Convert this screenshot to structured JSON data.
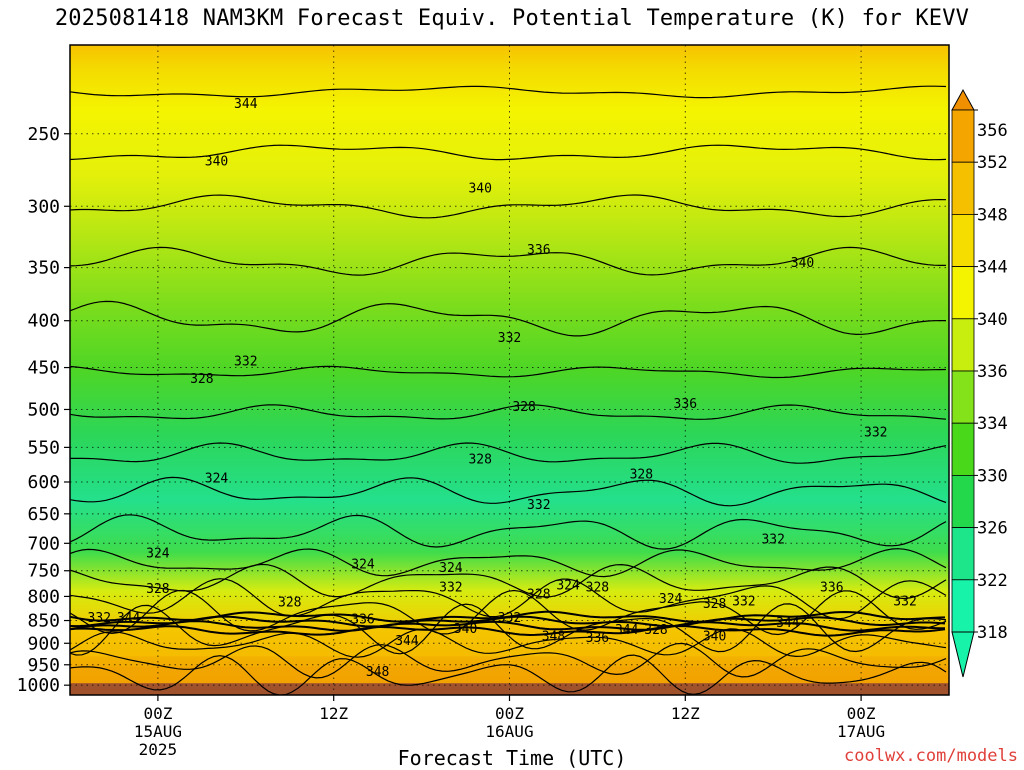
{
  "chart_data": {
    "type": "heatmap",
    "title": "2025081418 NAM3KM Forecast Equiv. Potential Temperature (K) for KEVV",
    "xlabel": "Forecast Time (UTC)",
    "ylabel": "",
    "yscale": "log",
    "y_ticks": [
      250,
      300,
      350,
      400,
      450,
      500,
      550,
      600,
      650,
      700,
      750,
      800,
      850,
      900,
      950,
      1000
    ],
    "ylim": [
      1025,
      200
    ],
    "x_ticks": [
      {
        "x": "2025-08-15T00",
        "label": "00Z",
        "day": "15AUG",
        "year": "2025"
      },
      {
        "x": "2025-08-15T12",
        "label": "12Z",
        "day": "",
        "year": ""
      },
      {
        "x": "2025-08-16T00",
        "label": "00Z",
        "day": "16AUG",
        "year": ""
      },
      {
        "x": "2025-08-16T12",
        "label": "12Z",
        "day": "",
        "year": ""
      },
      {
        "x": "2025-08-17T00",
        "label": "00Z",
        "day": "17AUG",
        "year": ""
      }
    ],
    "xlim": [
      "2025-08-14T18",
      "2025-08-17T06"
    ],
    "grid": true,
    "colorbar": {
      "levels": [
        318,
        322,
        326,
        330,
        334,
        336,
        340,
        344,
        348,
        352,
        356
      ],
      "colors": [
        "#17f3a8",
        "#1de68a",
        "#23d84a",
        "#4ad81a",
        "#83e21a",
        "#c8ee10",
        "#f4f400",
        "#f5dd00",
        "#f5c000",
        "#f5a500",
        "#f09000"
      ],
      "placement": "right"
    },
    "contour_labels": [
      {
        "value": "344",
        "time": "2025-08-15T06",
        "pressure": 232
      },
      {
        "value": "340",
        "time": "2025-08-15T04",
        "pressure": 268
      },
      {
        "value": "340",
        "time": "2025-08-15T22",
        "pressure": 287
      },
      {
        "value": "336",
        "time": "2025-08-16T02",
        "pressure": 335
      },
      {
        "value": "340",
        "time": "2025-08-16T20",
        "pressure": 346
      },
      {
        "value": "332",
        "time": "2025-08-16T00",
        "pressure": 418
      },
      {
        "value": "332",
        "time": "2025-08-15T06",
        "pressure": 443
      },
      {
        "value": "328",
        "time": "2025-08-15T03",
        "pressure": 463
      },
      {
        "value": "336",
        "time": "2025-08-16T12",
        "pressure": 493
      },
      {
        "value": "328",
        "time": "2025-08-16T01",
        "pressure": 497
      },
      {
        "value": "332",
        "time": "2025-08-17T01",
        "pressure": 530
      },
      {
        "value": "328",
        "time": "2025-08-15T22",
        "pressure": 567
      },
      {
        "value": "328",
        "time": "2025-08-16T09",
        "pressure": 589
      },
      {
        "value": "324",
        "time": "2025-08-15T04",
        "pressure": 595
      },
      {
        "value": "332",
        "time": "2025-08-16T02",
        "pressure": 636
      },
      {
        "value": "332",
        "time": "2025-08-16T18",
        "pressure": 693
      },
      {
        "value": "324",
        "time": "2025-08-15T00",
        "pressure": 718
      },
      {
        "value": "324",
        "time": "2025-08-15T14",
        "pressure": 738
      },
      {
        "value": "324",
        "time": "2025-08-15T20",
        "pressure": 745
      },
      {
        "value": "324",
        "time": "2025-08-16T04",
        "pressure": 778
      },
      {
        "value": "332",
        "time": "2025-08-15T20",
        "pressure": 782
      },
      {
        "value": "328",
        "time": "2025-08-16T06",
        "pressure": 782
      },
      {
        "value": "328",
        "time": "2025-08-15T00",
        "pressure": 785
      },
      {
        "value": "336",
        "time": "2025-08-16T22",
        "pressure": 782
      },
      {
        "value": "328",
        "time": "2025-08-16T02",
        "pressure": 796
      },
      {
        "value": "324",
        "time": "2025-08-16T11",
        "pressure": 805
      },
      {
        "value": "328",
        "time": "2025-08-15T09",
        "pressure": 812
      },
      {
        "value": "332",
        "time": "2025-08-16T16",
        "pressure": 810
      },
      {
        "value": "328",
        "time": "2025-08-16T14",
        "pressure": 815
      },
      {
        "value": "332",
        "time": "2025-08-17T03",
        "pressure": 810
      },
      {
        "value": "332",
        "time": "2025-08-14T20",
        "pressure": 845
      },
      {
        "value": "344",
        "time": "2025-08-14T22",
        "pressure": 845
      },
      {
        "value": "336",
        "time": "2025-08-15T14",
        "pressure": 848
      },
      {
        "value": "332",
        "time": "2025-08-16T00",
        "pressure": 845
      },
      {
        "value": "344",
        "time": "2025-08-16T19",
        "pressure": 855
      },
      {
        "value": "340",
        "time": "2025-08-15T21",
        "pressure": 868
      },
      {
        "value": "344",
        "time": "2025-08-16T08",
        "pressure": 870
      },
      {
        "value": "328",
        "time": "2025-08-16T10",
        "pressure": 870
      },
      {
        "value": "348",
        "time": "2025-08-16T03",
        "pressure": 885
      },
      {
        "value": "336",
        "time": "2025-08-16T06",
        "pressure": 888
      },
      {
        "value": "340",
        "time": "2025-08-16T14",
        "pressure": 885
      },
      {
        "value": "344",
        "time": "2025-08-15T17",
        "pressure": 895
      },
      {
        "value": "348",
        "time": "2025-08-15T15",
        "pressure": 968
      }
    ]
  },
  "credit": "coolwx.com/models"
}
